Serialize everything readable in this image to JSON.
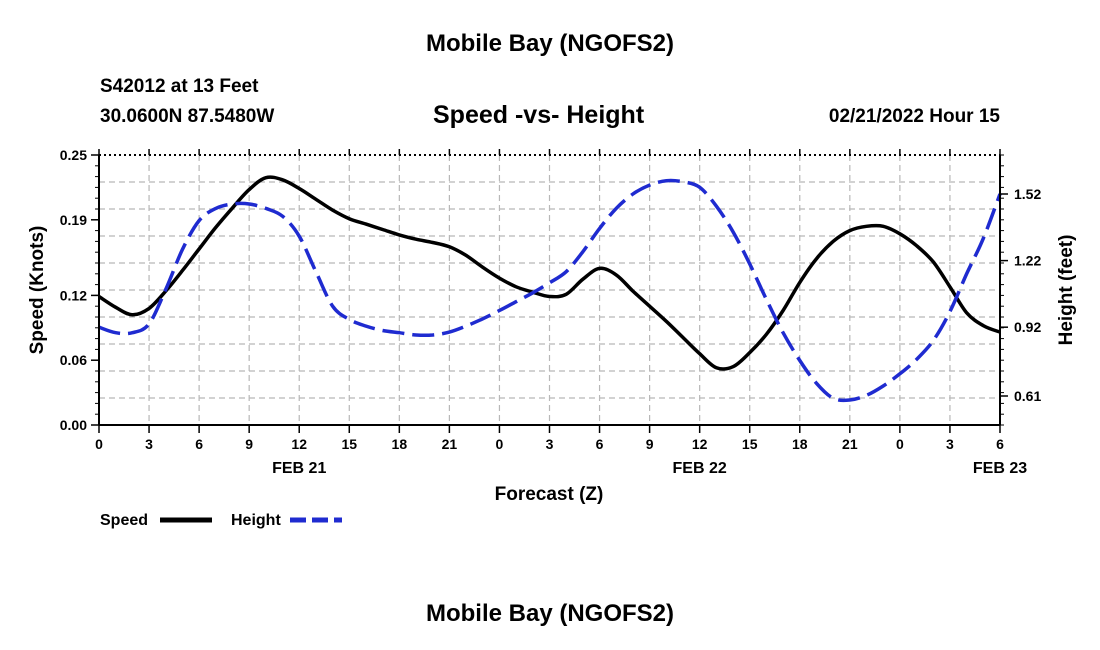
{
  "header": {
    "title": "Mobile Bay (NGOFS2)",
    "station": "S42012 at 13 Feet",
    "coordinates": "30.0600N  87.5480W",
    "subtitle": "Speed -vs- Height",
    "datetime": "02/21/2022 Hour 15",
    "footer_title": "Mobile Bay (NGOFS2)"
  },
  "chart_data": {
    "type": "line",
    "title": "Speed -vs- Height",
    "xlabel": "Forecast (Z)",
    "ylabel_left": "Speed (Knots)",
    "ylabel_right": "Height (feet)",
    "x_tick_labels": [
      "0",
      "3",
      "6",
      "9",
      "12",
      "15",
      "18",
      "21",
      "0",
      "3",
      "6",
      "9",
      "12",
      "15",
      "18",
      "21",
      "0",
      "3",
      "6"
    ],
    "date_labels": [
      {
        "label": "FEB 21",
        "hour": 12
      },
      {
        "label": "FEB 22",
        "hour": 36
      },
      {
        "label": "FEB 23",
        "hour": 54
      }
    ],
    "xlim": [
      0,
      54
    ],
    "ylim_left": [
      0.0,
      0.25
    ],
    "y_ticks_left": [
      "0.00",
      "0.06",
      "0.12",
      "0.19",
      "0.25"
    ],
    "y_ticks_right": [
      {
        "label": "0.61",
        "value": 0.61
      },
      {
        "label": "0.92",
        "value": 0.92
      },
      {
        "label": "1.22",
        "value": 1.22
      },
      {
        "label": "1.52",
        "value": 1.52
      }
    ],
    "grid": true,
    "legend_position": "bottom-left",
    "series": [
      {
        "name": "Speed",
        "axis": "left",
        "color": "#000000",
        "style": "solid",
        "x": [
          0,
          1,
          2,
          3,
          4,
          5,
          6,
          7,
          8,
          9,
          10,
          11,
          12,
          13,
          14,
          15,
          16,
          17,
          18,
          19,
          20,
          21,
          22,
          23,
          24,
          25,
          26,
          27,
          28,
          29,
          30,
          31,
          32,
          33,
          34,
          35,
          36,
          37,
          38,
          39,
          40,
          41,
          42,
          43,
          44,
          45,
          46,
          47,
          48,
          49,
          50,
          51,
          52,
          53,
          54
        ],
        "values": [
          0.119,
          0.109,
          0.102,
          0.108,
          0.124,
          0.143,
          0.163,
          0.183,
          0.201,
          0.218,
          0.229,
          0.227,
          0.219,
          0.209,
          0.199,
          0.191,
          0.186,
          0.181,
          0.176,
          0.172,
          0.169,
          0.165,
          0.157,
          0.146,
          0.136,
          0.128,
          0.123,
          0.119,
          0.121,
          0.135,
          0.145,
          0.139,
          0.124,
          0.11,
          0.096,
          0.081,
          0.066,
          0.053,
          0.054,
          0.067,
          0.084,
          0.106,
          0.132,
          0.154,
          0.17,
          0.18,
          0.184,
          0.184,
          0.177,
          0.166,
          0.151,
          0.128,
          0.104,
          0.092,
          0.086
        ]
      },
      {
        "name": "Height",
        "axis": "right",
        "color": "#1f2bd0",
        "style": "dashed",
        "x": [
          0,
          1,
          2,
          3,
          4,
          5,
          6,
          7,
          8,
          9,
          10,
          11,
          12,
          13,
          14,
          15,
          16,
          17,
          18,
          19,
          20,
          21,
          22,
          23,
          24,
          25,
          26,
          27,
          28,
          29,
          30,
          31,
          32,
          33,
          34,
          35,
          36,
          37,
          38,
          39,
          40,
          41,
          42,
          43,
          44,
          45,
          46,
          47,
          48,
          49,
          50,
          51,
          52,
          53,
          54
        ],
        "values": [
          0.92,
          0.895,
          0.895,
          0.935,
          1.09,
          1.27,
          1.4,
          1.455,
          1.475,
          1.475,
          1.455,
          1.42,
          1.33,
          1.17,
          1.015,
          0.955,
          0.925,
          0.905,
          0.895,
          0.885,
          0.885,
          0.898,
          0.925,
          0.958,
          0.995,
          1.035,
          1.075,
          1.12,
          1.17,
          1.26,
          1.365,
          1.455,
          1.52,
          1.56,
          1.58,
          1.575,
          1.55,
          1.465,
          1.35,
          1.205,
          1.045,
          0.895,
          0.77,
          0.667,
          0.6,
          0.592,
          0.613,
          0.655,
          0.71,
          0.775,
          0.86,
          0.99,
          1.16,
          1.32,
          1.52
        ]
      }
    ]
  },
  "legend": {
    "speed_label": "Speed",
    "height_label": "Height"
  }
}
